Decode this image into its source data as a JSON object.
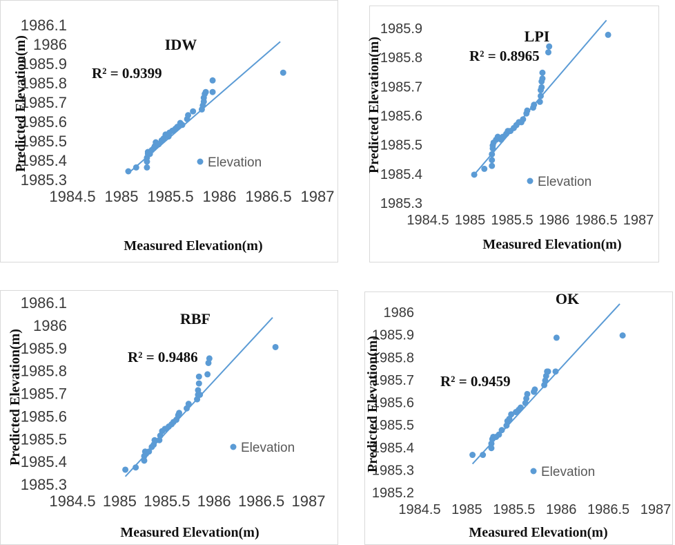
{
  "colors": {
    "marker": "#5B9BD5",
    "trendline": "#5B9BD5",
    "panel_border": "#d9d9d9"
  },
  "chart_data": [
    {
      "type": "scatter",
      "title": "IDW",
      "r_squared": "R² = 0.9399",
      "xlabel": "Measured Elevation(m)",
      "ylabel": "Predicted Elevation(m)",
      "xlim": [
        1984.5,
        1987
      ],
      "ylim": [
        1985.3,
        1986.1
      ],
      "xticks": [
        "1984.5",
        "1985",
        "1985.5",
        "1986",
        "1986.5",
        "1987"
      ],
      "yticks": [
        "1985.3",
        "1985.4",
        "1985.5",
        "1985.6",
        "1985.7",
        "1985.8",
        "1985.9",
        "1986",
        "1986.1"
      ],
      "legend": "Elevation",
      "trendline": {
        "x": [
          1985.07,
          1986.62
        ],
        "y": [
          1985.34,
          1986.02
        ]
      },
      "series": [
        {
          "name": "Elevation",
          "x": [
            1985.07,
            1985.15,
            1985.26,
            1985.26,
            1985.26,
            1985.27,
            1985.27,
            1985.29,
            1985.31,
            1985.33,
            1985.34,
            1985.35,
            1985.38,
            1985.41,
            1985.43,
            1985.45,
            1985.48,
            1985.49,
            1985.52,
            1985.55,
            1985.57,
            1985.6,
            1985.62,
            1985.67,
            1985.68,
            1985.73,
            1985.82,
            1985.83,
            1985.84,
            1985.84,
            1985.85,
            1985.86,
            1985.93,
            1985.93,
            1986.65
          ],
          "y": [
            1985.35,
            1985.37,
            1985.37,
            1985.4,
            1985.42,
            1985.44,
            1985.45,
            1985.44,
            1985.46,
            1985.47,
            1985.48,
            1985.5,
            1985.49,
            1985.51,
            1985.52,
            1985.54,
            1985.53,
            1985.55,
            1985.56,
            1985.57,
            1985.58,
            1985.6,
            1985.59,
            1985.62,
            1985.64,
            1985.66,
            1985.67,
            1985.69,
            1985.71,
            1985.73,
            1985.75,
            1985.76,
            1985.76,
            1985.82,
            1985.86
          ]
        }
      ]
    },
    {
      "type": "scatter",
      "title": "LPI",
      "r_squared": "R² = 0.8965",
      "xlabel": "Measured Elevation(m)",
      "ylabel": "Predicted Elevation(m)",
      "xlim": [
        1984.5,
        1987
      ],
      "ylim": [
        1985.3,
        1985.9
      ],
      "xticks": [
        "1984.5",
        "1985",
        "1985.5",
        "1986",
        "1986.5",
        "1987"
      ],
      "yticks": [
        "1985.3",
        "1985.4",
        "1985.5",
        "1985.6",
        "1985.7",
        "1985.8",
        "1985.9"
      ],
      "legend": "Elevation",
      "trendline": {
        "x": [
          1985.05,
          1986.62
        ],
        "y": [
          1985.4,
          1985.93
        ]
      },
      "series": [
        {
          "name": "Elevation",
          "x": [
            1985.05,
            1985.17,
            1985.26,
            1985.26,
            1985.26,
            1985.27,
            1985.27,
            1985.28,
            1985.31,
            1985.33,
            1985.37,
            1985.39,
            1985.43,
            1985.45,
            1985.48,
            1985.52,
            1985.55,
            1985.58,
            1985.61,
            1985.63,
            1985.67,
            1985.68,
            1985.75,
            1985.76,
            1985.83,
            1985.84,
            1985.84,
            1985.85,
            1985.85,
            1985.86,
            1985.86,
            1985.93,
            1985.94,
            1986.64
          ],
          "y": [
            1985.4,
            1985.42,
            1985.43,
            1985.45,
            1985.47,
            1985.49,
            1985.5,
            1985.51,
            1985.52,
            1985.53,
            1985.52,
            1985.53,
            1985.54,
            1985.55,
            1985.55,
            1985.56,
            1985.57,
            1985.58,
            1985.58,
            1985.59,
            1985.61,
            1985.62,
            1985.63,
            1985.64,
            1985.65,
            1985.67,
            1985.69,
            1985.7,
            1985.72,
            1985.73,
            1985.75,
            1985.82,
            1985.84,
            1985.88
          ]
        }
      ]
    },
    {
      "type": "scatter",
      "title": "RBF",
      "r_squared": "R² = 0.9486",
      "xlabel": "Measured Elevation(m)",
      "ylabel": "Predicted Elevation(m)",
      "xlim": [
        1984.5,
        1987
      ],
      "ylim": [
        1985.3,
        1986.1
      ],
      "xticks": [
        "1984.5",
        "1985",
        "1985.5",
        "1986",
        "1986.5",
        "1987"
      ],
      "yticks": [
        "1985.3",
        "1985.4",
        "1985.5",
        "1985.6",
        "1985.7",
        "1985.8",
        "1985.9",
        "1986",
        "1986.1"
      ],
      "legend": "Elevation",
      "trendline": {
        "x": [
          1985.06,
          1986.62
        ],
        "y": [
          1985.34,
          1986.04
        ]
      },
      "series": [
        {
          "name": "Elevation",
          "x": [
            1985.06,
            1985.17,
            1985.26,
            1985.26,
            1985.27,
            1985.28,
            1985.31,
            1985.34,
            1985.36,
            1985.37,
            1985.42,
            1985.43,
            1985.45,
            1985.48,
            1985.52,
            1985.55,
            1985.57,
            1985.6,
            1985.62,
            1985.63,
            1985.71,
            1985.73,
            1985.82,
            1985.83,
            1985.83,
            1985.84,
            1985.84,
            1985.85,
            1985.93,
            1985.94,
            1985.95,
            1986.65
          ],
          "y": [
            1985.37,
            1985.38,
            1985.41,
            1985.43,
            1985.45,
            1985.44,
            1985.45,
            1985.47,
            1985.48,
            1985.5,
            1985.5,
            1985.52,
            1985.54,
            1985.55,
            1985.56,
            1985.57,
            1985.58,
            1985.59,
            1985.61,
            1985.62,
            1985.64,
            1985.66,
            1985.68,
            1985.7,
            1985.72,
            1985.75,
            1985.78,
            1985.7,
            1985.79,
            1985.84,
            1985.86,
            1985.91
          ]
        }
      ]
    },
    {
      "type": "scatter",
      "title": "OK",
      "r_squared": "R² = 0.9459",
      "xlabel": "Measured Elevation(m)",
      "ylabel": "Predicted Elevation(m)",
      "xlim": [
        1984.5,
        1987
      ],
      "ylim": [
        1985.2,
        1986
      ],
      "xticks": [
        "1984.5",
        "1985",
        "1985.5",
        "1986",
        "1986.5",
        "1987"
      ],
      "yticks": [
        "1985.2",
        "1985.3",
        "1985.4",
        "1985.5",
        "1985.6",
        "1985.7",
        "1985.8",
        "1985.9",
        "1986"
      ],
      "legend": "Elevation",
      "trendline": {
        "x": [
          1985.06,
          1986.62
        ],
        "y": [
          1985.33,
          1986.04
        ]
      },
      "series": [
        {
          "name": "Elevation",
          "x": [
            1985.06,
            1985.17,
            1985.26,
            1985.26,
            1985.27,
            1985.28,
            1985.31,
            1985.34,
            1985.37,
            1985.42,
            1985.43,
            1985.45,
            1985.47,
            1985.52,
            1985.55,
            1985.57,
            1985.62,
            1985.63,
            1985.64,
            1985.71,
            1985.72,
            1985.82,
            1985.83,
            1985.84,
            1985.85,
            1985.86,
            1985.94,
            1985.95,
            1986.65
          ],
          "y": [
            1985.37,
            1985.37,
            1985.4,
            1985.42,
            1985.44,
            1985.45,
            1985.45,
            1985.46,
            1985.48,
            1985.5,
            1985.52,
            1985.53,
            1985.55,
            1985.56,
            1985.57,
            1985.58,
            1985.6,
            1985.62,
            1985.64,
            1985.65,
            1985.66,
            1985.68,
            1985.7,
            1985.72,
            1985.74,
            1985.74,
            1985.74,
            1985.89,
            1985.9
          ]
        }
      ]
    }
  ]
}
